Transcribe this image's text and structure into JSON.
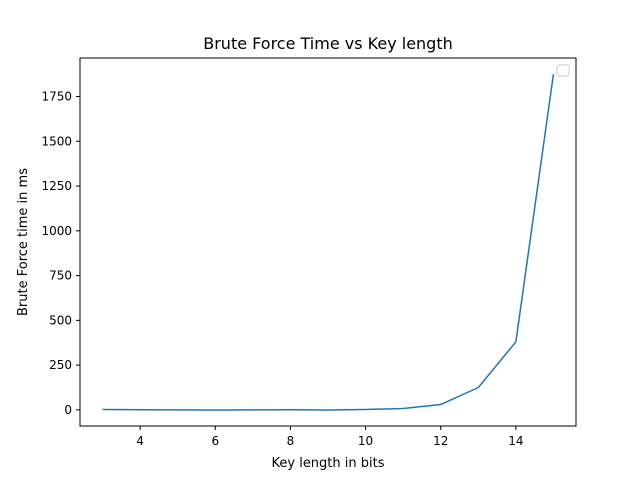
{
  "chart_data": {
    "type": "line",
    "title": "Brute Force Time vs Key length",
    "xlabel": "Key length in bits",
    "ylabel": "Brute Force time in ms",
    "xlim": [
      2.4,
      15.6
    ],
    "ylim": [
      -90,
      1965
    ],
    "x_ticks": [
      4,
      6,
      8,
      10,
      12,
      14
    ],
    "y_ticks": [
      0,
      250,
      500,
      750,
      1000,
      1250,
      1500,
      1750
    ],
    "grid": false,
    "legend": {
      "position": "top-right",
      "entries": []
    },
    "series": [
      {
        "color": "#1f77b4",
        "x": [
          3,
          4,
          5,
          6,
          7,
          8,
          9,
          10,
          11,
          12,
          13,
          14,
          15
        ],
        "values": [
          2,
          1,
          0,
          -1,
          0,
          1,
          -1,
          2,
          8,
          30,
          125,
          380,
          1875
        ]
      }
    ]
  }
}
